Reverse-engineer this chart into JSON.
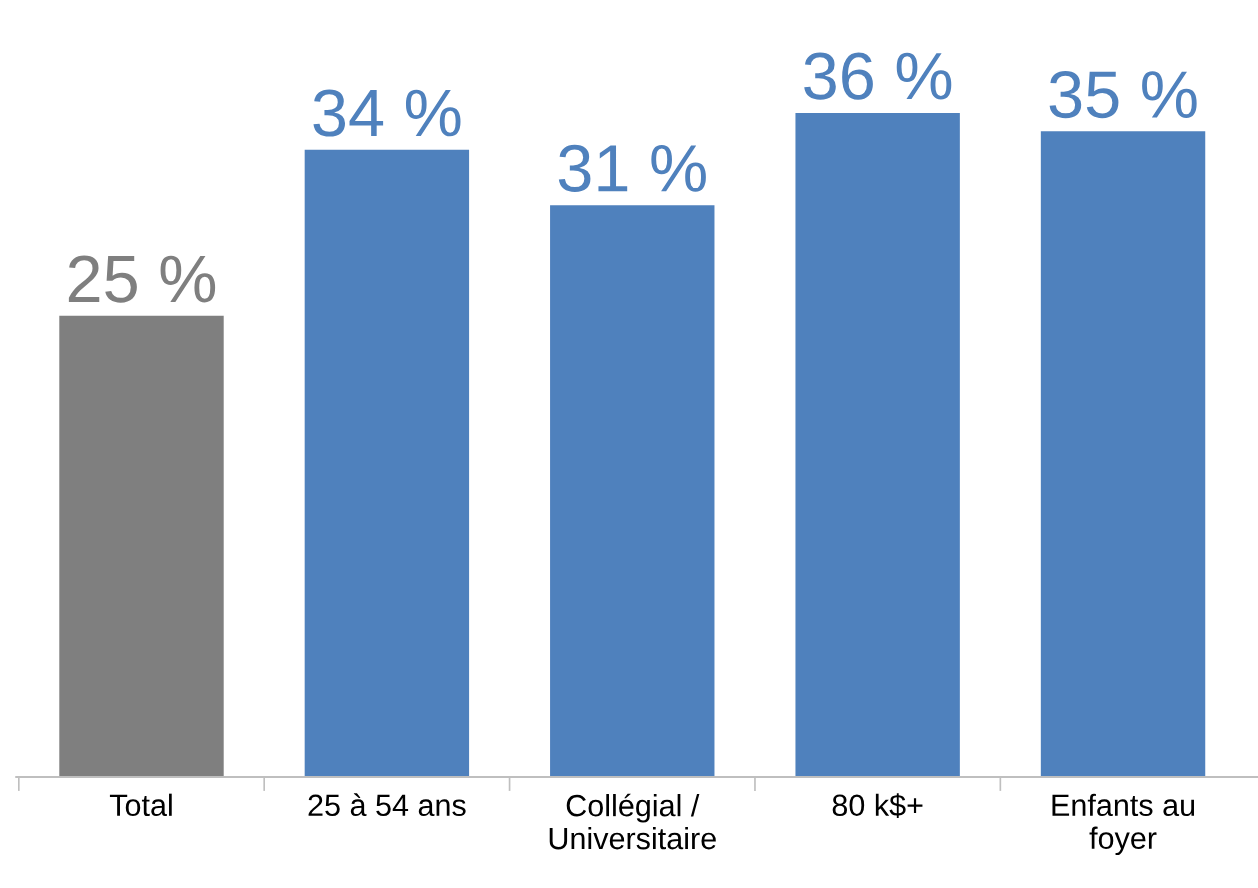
{
  "chart_data": {
    "type": "bar",
    "categories": [
      "Total",
      "25 à 54 ans",
      "Collégial /\nUniversitaire",
      "80 k$+",
      "Enfants au\nfoyer"
    ],
    "values": [
      25,
      34,
      31,
      36,
      35
    ],
    "colors": [
      "#7f7f7f",
      "#4f81bd",
      "#4f81bd",
      "#4f81bd",
      "#4f81bd"
    ],
    "value_labels": [
      "25 %",
      "34 %",
      "31 %",
      "36 %",
      "35 %"
    ],
    "grid": false,
    "legend": false
  }
}
